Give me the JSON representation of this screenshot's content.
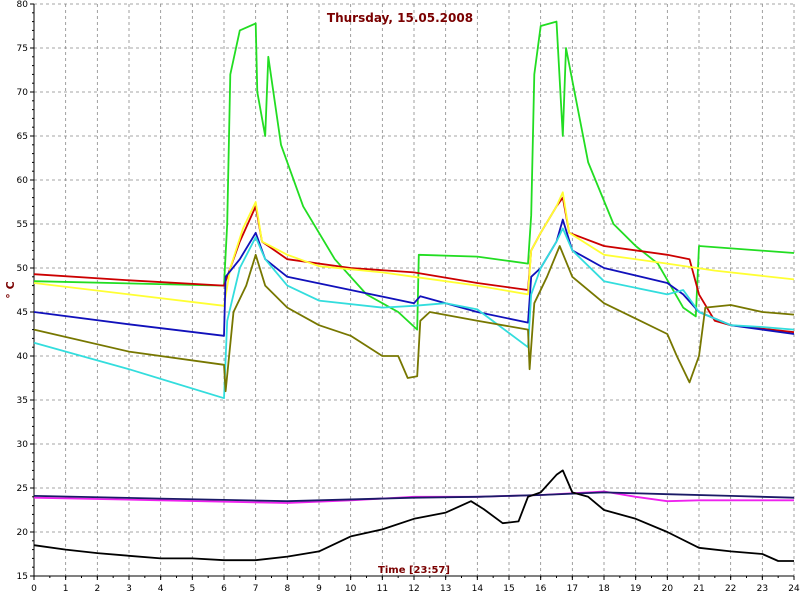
{
  "chart_data": {
    "type": "line",
    "title": "Thursday, 15.05.2008",
    "xlabel": "Time [23:57]",
    "ylabel": "° C",
    "xlim": [
      0,
      24
    ],
    "ylim": [
      15,
      80
    ],
    "x_ticks": [
      "0",
      "1",
      "2",
      "3",
      "4",
      "5",
      "6",
      "7",
      "8",
      "9",
      "10",
      "11",
      "12",
      "13",
      "14",
      "15",
      "16",
      "17",
      "18",
      "19",
      "20",
      "21",
      "22",
      "23",
      "24"
    ],
    "y_ticks": [
      "15",
      "20",
      "25",
      "30",
      "35",
      "40",
      "45",
      "50",
      "55",
      "60",
      "65",
      "70",
      "75",
      "80"
    ],
    "grid": true,
    "series": [
      {
        "color": "#22dd22",
        "points": [
          [
            0,
            48.5
          ],
          [
            6,
            48
          ],
          [
            6.1,
            55
          ],
          [
            6.2,
            72
          ],
          [
            6.5,
            77
          ],
          [
            7,
            77.8
          ],
          [
            7.05,
            70
          ],
          [
            7.3,
            65
          ],
          [
            7.4,
            74
          ],
          [
            7.8,
            64
          ],
          [
            8.5,
            57
          ],
          [
            9.5,
            51
          ],
          [
            10.5,
            47
          ],
          [
            11.5,
            45
          ],
          [
            12.1,
            43
          ],
          [
            12.15,
            51.5
          ],
          [
            14,
            51.3
          ],
          [
            15.6,
            50.5
          ],
          [
            15.7,
            56
          ],
          [
            15.8,
            72
          ],
          [
            16,
            77.5
          ],
          [
            16.5,
            78
          ],
          [
            16.7,
            65
          ],
          [
            16.8,
            75
          ],
          [
            17.5,
            62
          ],
          [
            18.3,
            55
          ],
          [
            19,
            52.5
          ],
          [
            19.7,
            50.5
          ],
          [
            20.5,
            45.5
          ],
          [
            20.9,
            44.5
          ],
          [
            21,
            52.5
          ],
          [
            24,
            51.7
          ]
        ]
      },
      {
        "color": "#cc0000",
        "points": [
          [
            0,
            49.3
          ],
          [
            3,
            48.6
          ],
          [
            6,
            48
          ],
          [
            6.1,
            49
          ],
          [
            6.5,
            53
          ],
          [
            7,
            57
          ],
          [
            7.2,
            53
          ],
          [
            8,
            51
          ],
          [
            10,
            50
          ],
          [
            12,
            49.5
          ],
          [
            14,
            48.3
          ],
          [
            15.6,
            47.5
          ],
          [
            15.7,
            52
          ],
          [
            16,
            54
          ],
          [
            16.5,
            57
          ],
          [
            16.7,
            58
          ],
          [
            16.9,
            54
          ],
          [
            18,
            52.5
          ],
          [
            20,
            51.5
          ],
          [
            20.7,
            51
          ],
          [
            21,
            47
          ],
          [
            21.5,
            44
          ],
          [
            22,
            43.5
          ],
          [
            24,
            42.7
          ]
        ]
      },
      {
        "color": "#ffff33",
        "points": [
          [
            0,
            48.3
          ],
          [
            3,
            47
          ],
          [
            6,
            45.7
          ],
          [
            6.2,
            50
          ],
          [
            6.6,
            54.5
          ],
          [
            7,
            57.5
          ],
          [
            7.2,
            53
          ],
          [
            8,
            51.5
          ],
          [
            9,
            50.2
          ],
          [
            11,
            49.5
          ],
          [
            12,
            49
          ],
          [
            14,
            48
          ],
          [
            15.6,
            47
          ],
          [
            15.7,
            52
          ],
          [
            16,
            54
          ],
          [
            16.5,
            57
          ],
          [
            16.7,
            58.6
          ],
          [
            16.9,
            54
          ],
          [
            18,
            51.5
          ],
          [
            20,
            50.5
          ],
          [
            21.5,
            49.7
          ],
          [
            24,
            48.7
          ]
        ]
      },
      {
        "color": "#1111bb",
        "points": [
          [
            0,
            45
          ],
          [
            3,
            43.6
          ],
          [
            6,
            42.3
          ],
          [
            6.05,
            49
          ],
          [
            6.5,
            51
          ],
          [
            7,
            54
          ],
          [
            7.3,
            51
          ],
          [
            8,
            49
          ],
          [
            10,
            47.5
          ],
          [
            12,
            46
          ],
          [
            12.2,
            46.8
          ],
          [
            14,
            45
          ],
          [
            15.6,
            43.8
          ],
          [
            15.7,
            49
          ],
          [
            16,
            50
          ],
          [
            16.5,
            53
          ],
          [
            16.7,
            55.5
          ],
          [
            17,
            52
          ],
          [
            18,
            50
          ],
          [
            20,
            48.3
          ],
          [
            20.5,
            47
          ],
          [
            21,
            45
          ],
          [
            22,
            43.5
          ],
          [
            24,
            42.5
          ]
        ]
      },
      {
        "color": "#33dddd",
        "points": [
          [
            0,
            41.5
          ],
          [
            3,
            38.5
          ],
          [
            6,
            35.2
          ],
          [
            6.1,
            44
          ],
          [
            6.5,
            50
          ],
          [
            7,
            53.5
          ],
          [
            7.3,
            51
          ],
          [
            8,
            48
          ],
          [
            9,
            46.3
          ],
          [
            11,
            45.5
          ],
          [
            12,
            45.7
          ],
          [
            13,
            46
          ],
          [
            14,
            45.3
          ],
          [
            15.6,
            41
          ],
          [
            15.7,
            47
          ],
          [
            16,
            50
          ],
          [
            16.5,
            53
          ],
          [
            16.7,
            54.5
          ],
          [
            17,
            52
          ],
          [
            18,
            48.5
          ],
          [
            20,
            47
          ],
          [
            20.5,
            47.5
          ],
          [
            21,
            45
          ],
          [
            22,
            43.5
          ],
          [
            23,
            43.3
          ],
          [
            24,
            43
          ]
        ]
      },
      {
        "color": "#777700",
        "points": [
          [
            0,
            43
          ],
          [
            3,
            40.5
          ],
          [
            6,
            39
          ],
          [
            6.05,
            36
          ],
          [
            6.3,
            45
          ],
          [
            6.7,
            48
          ],
          [
            7,
            51.5
          ],
          [
            7.3,
            48
          ],
          [
            8,
            45.5
          ],
          [
            9,
            43.5
          ],
          [
            10,
            42.3
          ],
          [
            11,
            40
          ],
          [
            11.5,
            40
          ],
          [
            11.8,
            37.5
          ],
          [
            12.1,
            37.7
          ],
          [
            12.2,
            44
          ],
          [
            12.5,
            45
          ],
          [
            14,
            44
          ],
          [
            15.6,
            43
          ],
          [
            15.65,
            38.5
          ],
          [
            15.8,
            46
          ],
          [
            16.2,
            49
          ],
          [
            16.6,
            52.5
          ],
          [
            17,
            49
          ],
          [
            18,
            46
          ],
          [
            20,
            42.5
          ],
          [
            20.3,
            40
          ],
          [
            20.7,
            37
          ],
          [
            21,
            40
          ],
          [
            21.2,
            45.5
          ],
          [
            22,
            45.8
          ],
          [
            23,
            45
          ],
          [
            24,
            44.7
          ]
        ]
      },
      {
        "color": "#ee22ee",
        "points": [
          [
            0,
            23.9
          ],
          [
            4,
            23.6
          ],
          [
            8,
            23.3
          ],
          [
            10,
            23.6
          ],
          [
            12,
            24
          ],
          [
            14,
            24
          ],
          [
            16,
            24.2
          ],
          [
            18,
            24.6
          ],
          [
            19,
            24
          ],
          [
            20,
            23.5
          ],
          [
            21,
            23.6
          ],
          [
            24,
            23.6
          ]
        ]
      },
      {
        "color": "#1a1a66",
        "points": [
          [
            0,
            24.1
          ],
          [
            4,
            23.8
          ],
          [
            8,
            23.5
          ],
          [
            12,
            23.9
          ],
          [
            14,
            24
          ],
          [
            16,
            24.2
          ],
          [
            18,
            24.5
          ],
          [
            20,
            24.3
          ],
          [
            22,
            24.1
          ],
          [
            24,
            23.9
          ]
        ]
      },
      {
        "color": "#000000",
        "points": [
          [
            0,
            18.5
          ],
          [
            1,
            18
          ],
          [
            2,
            17.6
          ],
          [
            3,
            17.3
          ],
          [
            4,
            17
          ],
          [
            5,
            17
          ],
          [
            6,
            16.8
          ],
          [
            7,
            16.8
          ],
          [
            8,
            17.2
          ],
          [
            9,
            17.8
          ],
          [
            10,
            19.5
          ],
          [
            11,
            20.3
          ],
          [
            12,
            21.5
          ],
          [
            13,
            22.2
          ],
          [
            13.8,
            23.5
          ],
          [
            14.2,
            22.6
          ],
          [
            14.8,
            21
          ],
          [
            15.3,
            21.2
          ],
          [
            15.6,
            24
          ],
          [
            16,
            24.5
          ],
          [
            16.5,
            26.5
          ],
          [
            16.7,
            27
          ],
          [
            17,
            24.5
          ],
          [
            17.5,
            24
          ],
          [
            18,
            22.5
          ],
          [
            19,
            21.5
          ],
          [
            20,
            20
          ],
          [
            21,
            18.2
          ],
          [
            22,
            17.8
          ],
          [
            23,
            17.5
          ],
          [
            23.5,
            16.7
          ],
          [
            24,
            16.7
          ]
        ]
      }
    ]
  }
}
